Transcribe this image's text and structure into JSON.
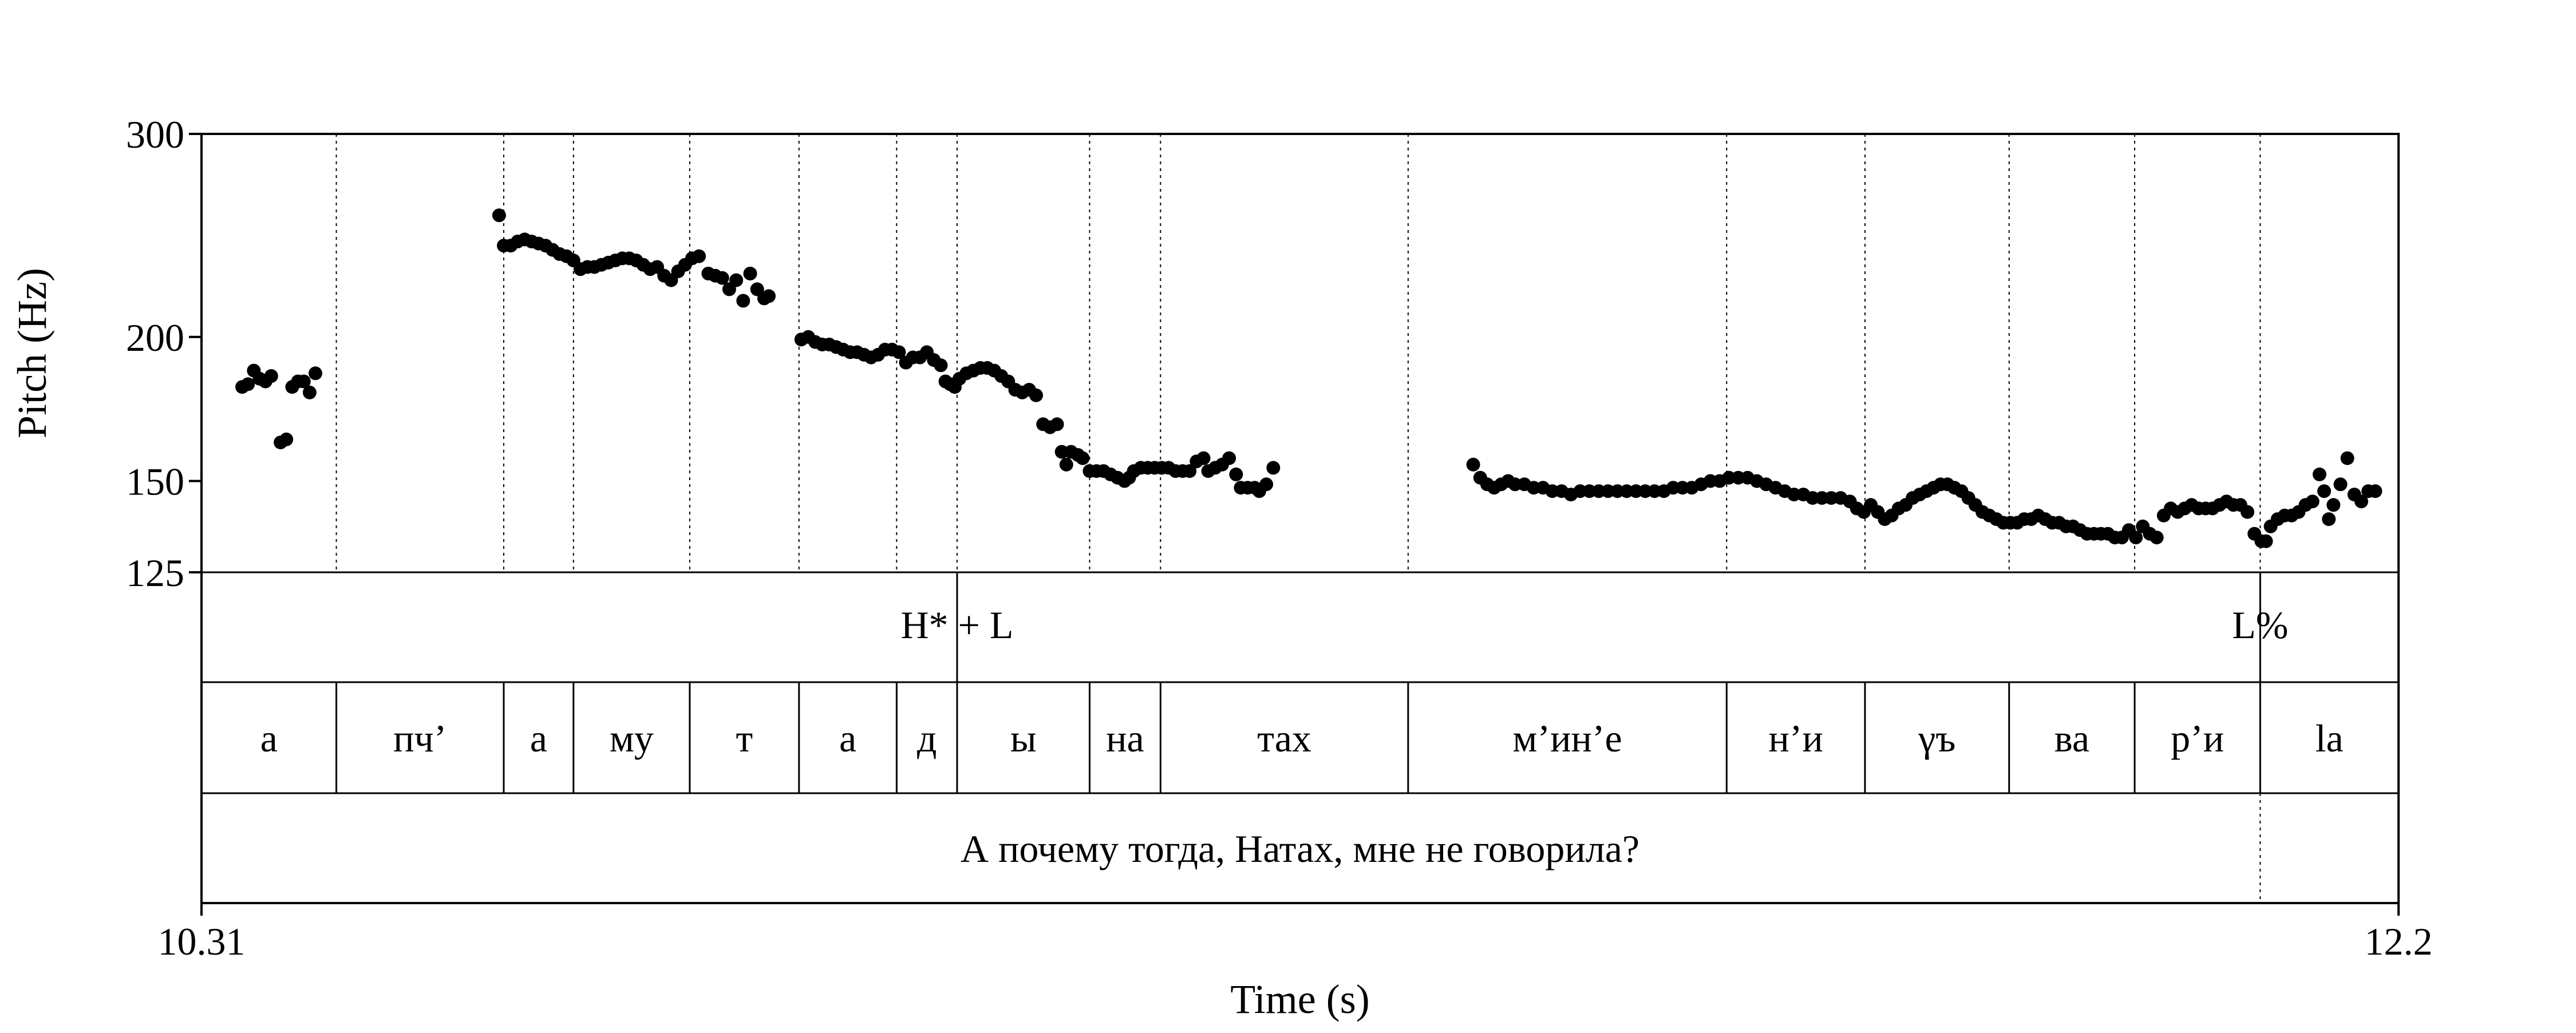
{
  "chart_data": {
    "type": "scatter",
    "title": "",
    "xlabel": "Time (s)",
    "ylabel": "Pitch (Hz)",
    "xlim": [
      10.31,
      12.2
    ],
    "ylim": [
      125,
      300
    ],
    "y_scale": "log",
    "x_tick_labels": [
      "10.31",
      "12.2"
    ],
    "y_ticks": [
      125,
      150,
      200,
      300
    ],
    "y_tick_labels": [
      "125",
      "150",
      "200",
      "300"
    ],
    "grid": false,
    "boundaries": [
      10.426,
      10.57,
      10.63,
      10.73,
      10.824,
      10.908,
      10.96,
      11.074,
      11.135,
      11.348,
      11.622,
      11.741,
      11.865,
      11.973,
      12.081
    ],
    "tone_tier": [
      {
        "label": "H* + L",
        "time": 10.96
      },
      {
        "label": "L%",
        "time": 12.081
      }
    ],
    "syllable_tier": [
      {
        "label": "а",
        "start": 10.31,
        "end": 10.426
      },
      {
        "label": "пч’",
        "start": 10.426,
        "end": 10.57
      },
      {
        "label": "а",
        "start": 10.57,
        "end": 10.63
      },
      {
        "label": "му",
        "start": 10.63,
        "end": 10.73
      },
      {
        "label": "т",
        "start": 10.73,
        "end": 10.824
      },
      {
        "label": "а",
        "start": 10.824,
        "end": 10.908
      },
      {
        "label": "д",
        "start": 10.908,
        "end": 10.96
      },
      {
        "label": "ы",
        "start": 10.96,
        "end": 11.074
      },
      {
        "label": "на",
        "start": 11.074,
        "end": 11.135
      },
      {
        "label": "тах",
        "start": 11.135,
        "end": 11.348
      },
      {
        "label": "м’ин’е",
        "start": 11.348,
        "end": 11.622
      },
      {
        "label": "н’и",
        "start": 11.622,
        "end": 11.741
      },
      {
        "label": "γъ",
        "start": 11.741,
        "end": 11.865
      },
      {
        "label": "ва",
        "start": 11.865,
        "end": 11.973
      },
      {
        "label": "р’и",
        "start": 11.973,
        "end": 12.081
      },
      {
        "label": "la",
        "start": 12.081,
        "end": 12.2
      }
    ],
    "sentence_tier": {
      "label": "А почему тогда, Натах, мне не говорила?"
    },
    "series": [
      {
        "values": [
          [
            10.345,
            181
          ],
          [
            10.35,
            182
          ],
          [
            10.355,
            187
          ],
          [
            10.36,
            184
          ],
          [
            10.365,
            183
          ],
          [
            10.37,
            185
          ],
          [
            10.378,
            162
          ],
          [
            10.383,
            163
          ],
          [
            10.388,
            181
          ],
          [
            10.393,
            183
          ],
          [
            10.398,
            183
          ],
          [
            10.403,
            179
          ],
          [
            10.408,
            186
          ],
          [
            10.566,
            255
          ],
          [
            10.57,
            240
          ],
          [
            10.576,
            240
          ],
          [
            10.582,
            242
          ],
          [
            10.588,
            243
          ],
          [
            10.594,
            242
          ],
          [
            10.6,
            241
          ],
          [
            10.606,
            240
          ],
          [
            10.612,
            238
          ],
          [
            10.618,
            236
          ],
          [
            10.624,
            235
          ],
          [
            10.63,
            233
          ],
          [
            10.636,
            229
          ],
          [
            10.642,
            230
          ],
          [
            10.648,
            230
          ],
          [
            10.654,
            231
          ],
          [
            10.66,
            232
          ],
          [
            10.666,
            233
          ],
          [
            10.672,
            234
          ],
          [
            10.678,
            234
          ],
          [
            10.684,
            233
          ],
          [
            10.69,
            231
          ],
          [
            10.696,
            229
          ],
          [
            10.702,
            230
          ],
          [
            10.708,
            226
          ],
          [
            10.714,
            224
          ],
          [
            10.72,
            228
          ],
          [
            10.726,
            231
          ],
          [
            10.732,
            234
          ],
          [
            10.738,
            235
          ],
          [
            10.746,
            227
          ],
          [
            10.752,
            226
          ],
          [
            10.758,
            225
          ],
          [
            10.764,
            220
          ],
          [
            10.77,
            224
          ],
          [
            10.776,
            215
          ],
          [
            10.782,
            227
          ],
          [
            10.788,
            220
          ],
          [
            10.794,
            216
          ],
          [
            10.798,
            217
          ],
          [
            10.826,
            199
          ],
          [
            10.832,
            200
          ],
          [
            10.838,
            198
          ],
          [
            10.844,
            197
          ],
          [
            10.85,
            197
          ],
          [
            10.856,
            196
          ],
          [
            10.862,
            195
          ],
          [
            10.868,
            194
          ],
          [
            10.874,
            194
          ],
          [
            10.88,
            193
          ],
          [
            10.886,
            192
          ],
          [
            10.892,
            193
          ],
          [
            10.898,
            195
          ],
          [
            10.904,
            195
          ],
          [
            10.91,
            194
          ],
          [
            10.916,
            190
          ],
          [
            10.922,
            192
          ],
          [
            10.928,
            192
          ],
          [
            10.934,
            194
          ],
          [
            10.94,
            191
          ],
          [
            10.946,
            189
          ],
          [
            10.95,
            183
          ],
          [
            10.954,
            182
          ],
          [
            10.958,
            181
          ],
          [
            10.962,
            184
          ],
          [
            10.968,
            186
          ],
          [
            10.974,
            187
          ],
          [
            10.98,
            188
          ],
          [
            10.986,
            188
          ],
          [
            10.992,
            187
          ],
          [
            10.998,
            185
          ],
          [
            11.004,
            183
          ],
          [
            11.01,
            180
          ],
          [
            11.016,
            179
          ],
          [
            11.022,
            180
          ],
          [
            11.028,
            178
          ],
          [
            11.034,
            168
          ],
          [
            11.04,
            167
          ],
          [
            11.046,
            168
          ],
          [
            11.05,
            159
          ],
          [
            11.054,
            155
          ],
          [
            11.058,
            159
          ],
          [
            11.064,
            158
          ],
          [
            11.068,
            157
          ],
          [
            11.074,
            153
          ],
          [
            11.08,
            153
          ],
          [
            11.086,
            153
          ],
          [
            11.092,
            152
          ],
          [
            11.098,
            151
          ],
          [
            11.104,
            150
          ],
          [
            11.108,
            151
          ],
          [
            11.112,
            153
          ],
          [
            11.118,
            154
          ],
          [
            11.124,
            154
          ],
          [
            11.13,
            154
          ],
          [
            11.136,
            154
          ],
          [
            11.142,
            154
          ],
          [
            11.148,
            153
          ],
          [
            11.154,
            153
          ],
          [
            11.16,
            153
          ],
          [
            11.166,
            156
          ],
          [
            11.172,
            157
          ],
          [
            11.176,
            153
          ],
          [
            11.182,
            154
          ],
          [
            11.188,
            155
          ],
          [
            11.194,
            157
          ],
          [
            11.2,
            152
          ],
          [
            11.204,
            148
          ],
          [
            11.21,
            148
          ],
          [
            11.216,
            148
          ],
          [
            11.22,
            147
          ],
          [
            11.226,
            149
          ],
          [
            11.232,
            154
          ],
          [
            11.404,
            155
          ],
          [
            11.41,
            151
          ],
          [
            11.416,
            149
          ],
          [
            11.422,
            148
          ],
          [
            11.428,
            149
          ],
          [
            11.434,
            150
          ],
          [
            11.44,
            149
          ],
          [
            11.448,
            149
          ],
          [
            11.456,
            148
          ],
          [
            11.464,
            148
          ],
          [
            11.472,
            147
          ],
          [
            11.48,
            147
          ],
          [
            11.488,
            146
          ],
          [
            11.496,
            147
          ],
          [
            11.504,
            147
          ],
          [
            11.512,
            147
          ],
          [
            11.52,
            147
          ],
          [
            11.528,
            147
          ],
          [
            11.536,
            147
          ],
          [
            11.544,
            147
          ],
          [
            11.552,
            147
          ],
          [
            11.56,
            147
          ],
          [
            11.568,
            147
          ],
          [
            11.576,
            148
          ],
          [
            11.584,
            148
          ],
          [
            11.592,
            148
          ],
          [
            11.6,
            149
          ],
          [
            11.608,
            150
          ],
          [
            11.616,
            150
          ],
          [
            11.624,
            151
          ],
          [
            11.632,
            151
          ],
          [
            11.64,
            151
          ],
          [
            11.648,
            150
          ],
          [
            11.656,
            149
          ],
          [
            11.664,
            148
          ],
          [
            11.672,
            147
          ],
          [
            11.68,
            146
          ],
          [
            11.688,
            146
          ],
          [
            11.696,
            145
          ],
          [
            11.704,
            145
          ],
          [
            11.712,
            145
          ],
          [
            11.72,
            145
          ],
          [
            11.728,
            144
          ],
          [
            11.734,
            142
          ],
          [
            11.74,
            141
          ],
          [
            11.746,
            143
          ],
          [
            11.752,
            141
          ],
          [
            11.758,
            139
          ],
          [
            11.764,
            140
          ],
          [
            11.77,
            142
          ],
          [
            11.776,
            143
          ],
          [
            11.782,
            145
          ],
          [
            11.788,
            146
          ],
          [
            11.794,
            147
          ],
          [
            11.8,
            148
          ],
          [
            11.806,
            149
          ],
          [
            11.812,
            149
          ],
          [
            11.818,
            148
          ],
          [
            11.824,
            147
          ],
          [
            11.83,
            145
          ],
          [
            11.836,
            143
          ],
          [
            11.842,
            141
          ],
          [
            11.848,
            140
          ],
          [
            11.854,
            139
          ],
          [
            11.86,
            138
          ],
          [
            11.866,
            138
          ],
          [
            11.872,
            138
          ],
          [
            11.878,
            139
          ],
          [
            11.884,
            139
          ],
          [
            11.89,
            140
          ],
          [
            11.896,
            139
          ],
          [
            11.902,
            138
          ],
          [
            11.908,
            138
          ],
          [
            11.914,
            137
          ],
          [
            11.92,
            137
          ],
          [
            11.926,
            136
          ],
          [
            11.932,
            135
          ],
          [
            11.938,
            135
          ],
          [
            11.944,
            135
          ],
          [
            11.95,
            135
          ],
          [
            11.956,
            134
          ],
          [
            11.962,
            134
          ],
          [
            11.968,
            136
          ],
          [
            11.974,
            134
          ],
          [
            11.98,
            137
          ],
          [
            11.986,
            135
          ],
          [
            11.992,
            134
          ],
          [
            11.998,
            140
          ],
          [
            12.004,
            142
          ],
          [
            12.01,
            141
          ],
          [
            12.016,
            142
          ],
          [
            12.022,
            143
          ],
          [
            12.028,
            142
          ],
          [
            12.034,
            142
          ],
          [
            12.04,
            142
          ],
          [
            12.046,
            143
          ],
          [
            12.052,
            144
          ],
          [
            12.058,
            143
          ],
          [
            12.064,
            143
          ],
          [
            12.07,
            141
          ],
          [
            12.076,
            135
          ],
          [
            12.082,
            133
          ],
          [
            12.086,
            133
          ],
          [
            12.09,
            137
          ],
          [
            12.096,
            139
          ],
          [
            12.102,
            140
          ],
          [
            12.108,
            140
          ],
          [
            12.114,
            141
          ],
          [
            12.12,
            143
          ],
          [
            12.126,
            144
          ],
          [
            12.132,
            152
          ],
          [
            12.136,
            147
          ],
          [
            12.14,
            139
          ],
          [
            12.144,
            143
          ],
          [
            12.15,
            149
          ],
          [
            12.156,
            157
          ],
          [
            12.162,
            146
          ],
          [
            12.168,
            144
          ],
          [
            12.174,
            147
          ],
          [
            12.18,
            147
          ]
        ]
      }
    ]
  }
}
